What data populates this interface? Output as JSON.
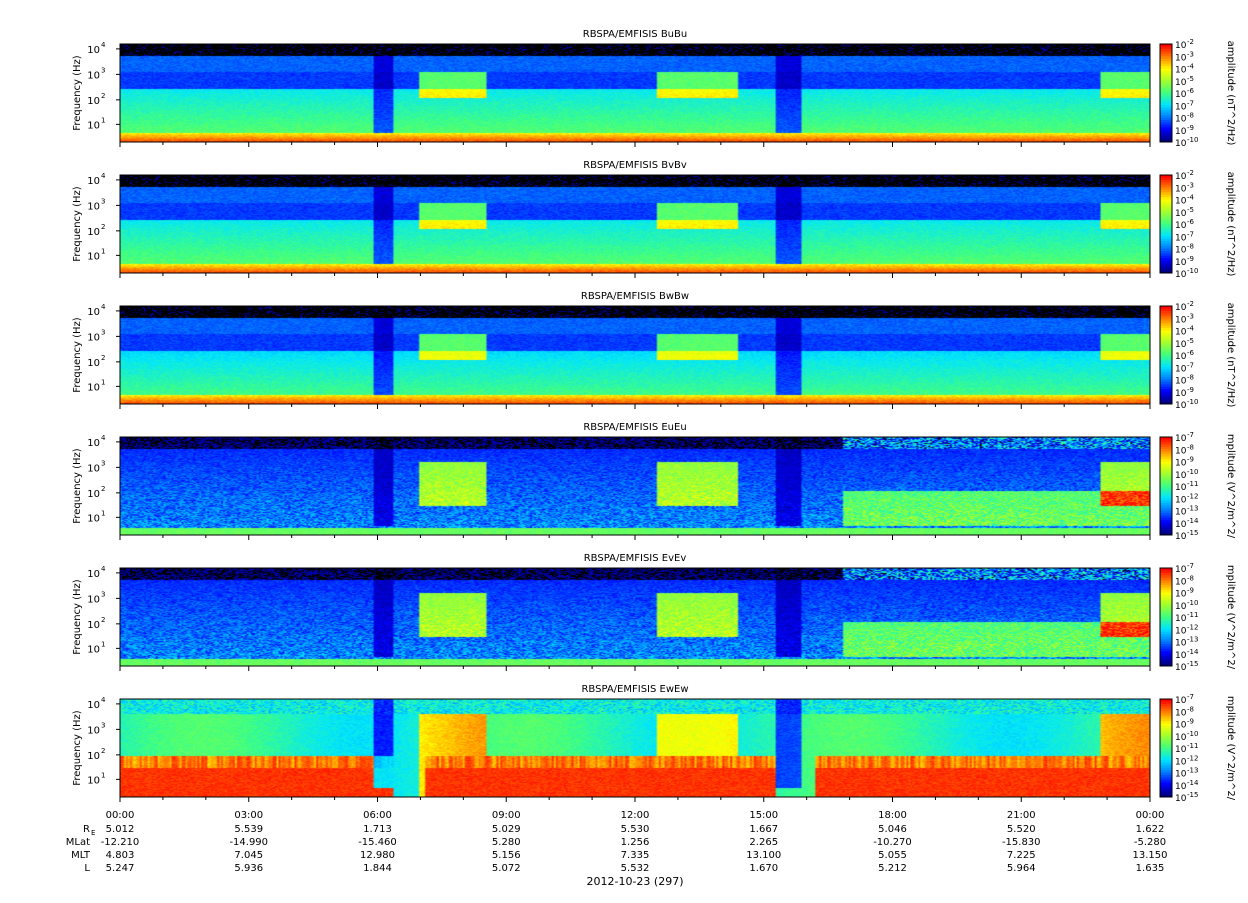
{
  "chart_data": {
    "type": "heatmap",
    "x_ticks": [
      "00:00",
      "03:00",
      "06:00",
      "09:00",
      "12:00",
      "15:00",
      "18:00",
      "21:00",
      "00:00"
    ],
    "date_label": "2012-10-23 (297)",
    "ephemeris": {
      "row_labels": [
        "R_E",
        "MLat",
        "MLT",
        "L"
      ],
      "rows": [
        [
          "5.012",
          "5.539",
          "1.713",
          "5.029",
          "5.530",
          "1.667",
          "5.046",
          "5.520",
          "1.622"
        ],
        [
          "-12.210",
          "-14.990",
          "-15.460",
          "5.280",
          "1.256",
          "2.265",
          "-10.270",
          "-15.830",
          "-5.280"
        ],
        [
          "4.803",
          "7.045",
          "12.980",
          "5.156",
          "7.335",
          "13.100",
          "5.055",
          "7.225",
          "13.150"
        ],
        [
          "5.247",
          "5.936",
          "1.844",
          "5.072",
          "5.532",
          "1.670",
          "5.212",
          "5.964",
          "1.635"
        ]
      ]
    },
    "y_scale": "log",
    "ylabel": "Frequency (Hz)",
    "y_ticks": [
      "10",
      "10",
      "10",
      "10"
    ],
    "y_tick_exps": [
      "1",
      "2",
      "3",
      "4"
    ],
    "panels": [
      {
        "title": "RBSPA/EMFISIS  BuBu",
        "cbar_label": "amplitude (nT^2/Hz)",
        "cbar_exps": [
          "-2",
          "-3",
          "-4",
          "-5",
          "-6",
          "-7",
          "-8",
          "-9",
          "-10"
        ],
        "noise": "B",
        "floor": 0.35
      },
      {
        "title": "RBSPA/EMFISIS  BvBv",
        "cbar_label": "amplitude (nT^2/Hz)",
        "cbar_exps": [
          "-2",
          "-3",
          "-4",
          "-5",
          "-6",
          "-7",
          "-8",
          "-9",
          "-10"
        ],
        "noise": "B",
        "floor": 0.35
      },
      {
        "title": "RBSPA/EMFISIS  BwBw",
        "cbar_label": "amplitude (nT^2/Hz)",
        "cbar_exps": [
          "-2",
          "-3",
          "-4",
          "-5",
          "-6",
          "-7",
          "-8",
          "-9",
          "-10"
        ],
        "noise": "B",
        "floor": 0.25
      },
      {
        "title": "RBSPA/EMFISIS  EuEu",
        "cbar_label": "mplitude (V^2/m^2/",
        "cbar_exps": [
          "-7",
          "-8",
          "-9",
          "-10",
          "-11",
          "-12",
          "-13",
          "-14",
          "-15"
        ],
        "noise": "E",
        "floor": 0.1
      },
      {
        "title": "RBSPA/EMFISIS  EvEv",
        "cbar_label": "mplitude (V^2/m^2/",
        "cbar_exps": [
          "-7",
          "-8",
          "-9",
          "-10",
          "-11",
          "-12",
          "-13",
          "-14",
          "-15"
        ],
        "noise": "E",
        "floor": 0.1
      },
      {
        "title": "RBSPA/EMFISIS  EwEw",
        "cbar_label": "mplitude (V^2/m^2/",
        "cbar_exps": [
          "-7",
          "-8",
          "-9",
          "-10",
          "-11",
          "-12",
          "-13",
          "-14",
          "-15"
        ],
        "noise": "Ew",
        "floor": 0.2
      }
    ],
    "colormap": [
      "#00007f",
      "#0000ff",
      "#0080ff",
      "#00e5ff",
      "#40ff80",
      "#a0ff30",
      "#ffff00",
      "#ff8000",
      "#ff0000"
    ]
  }
}
